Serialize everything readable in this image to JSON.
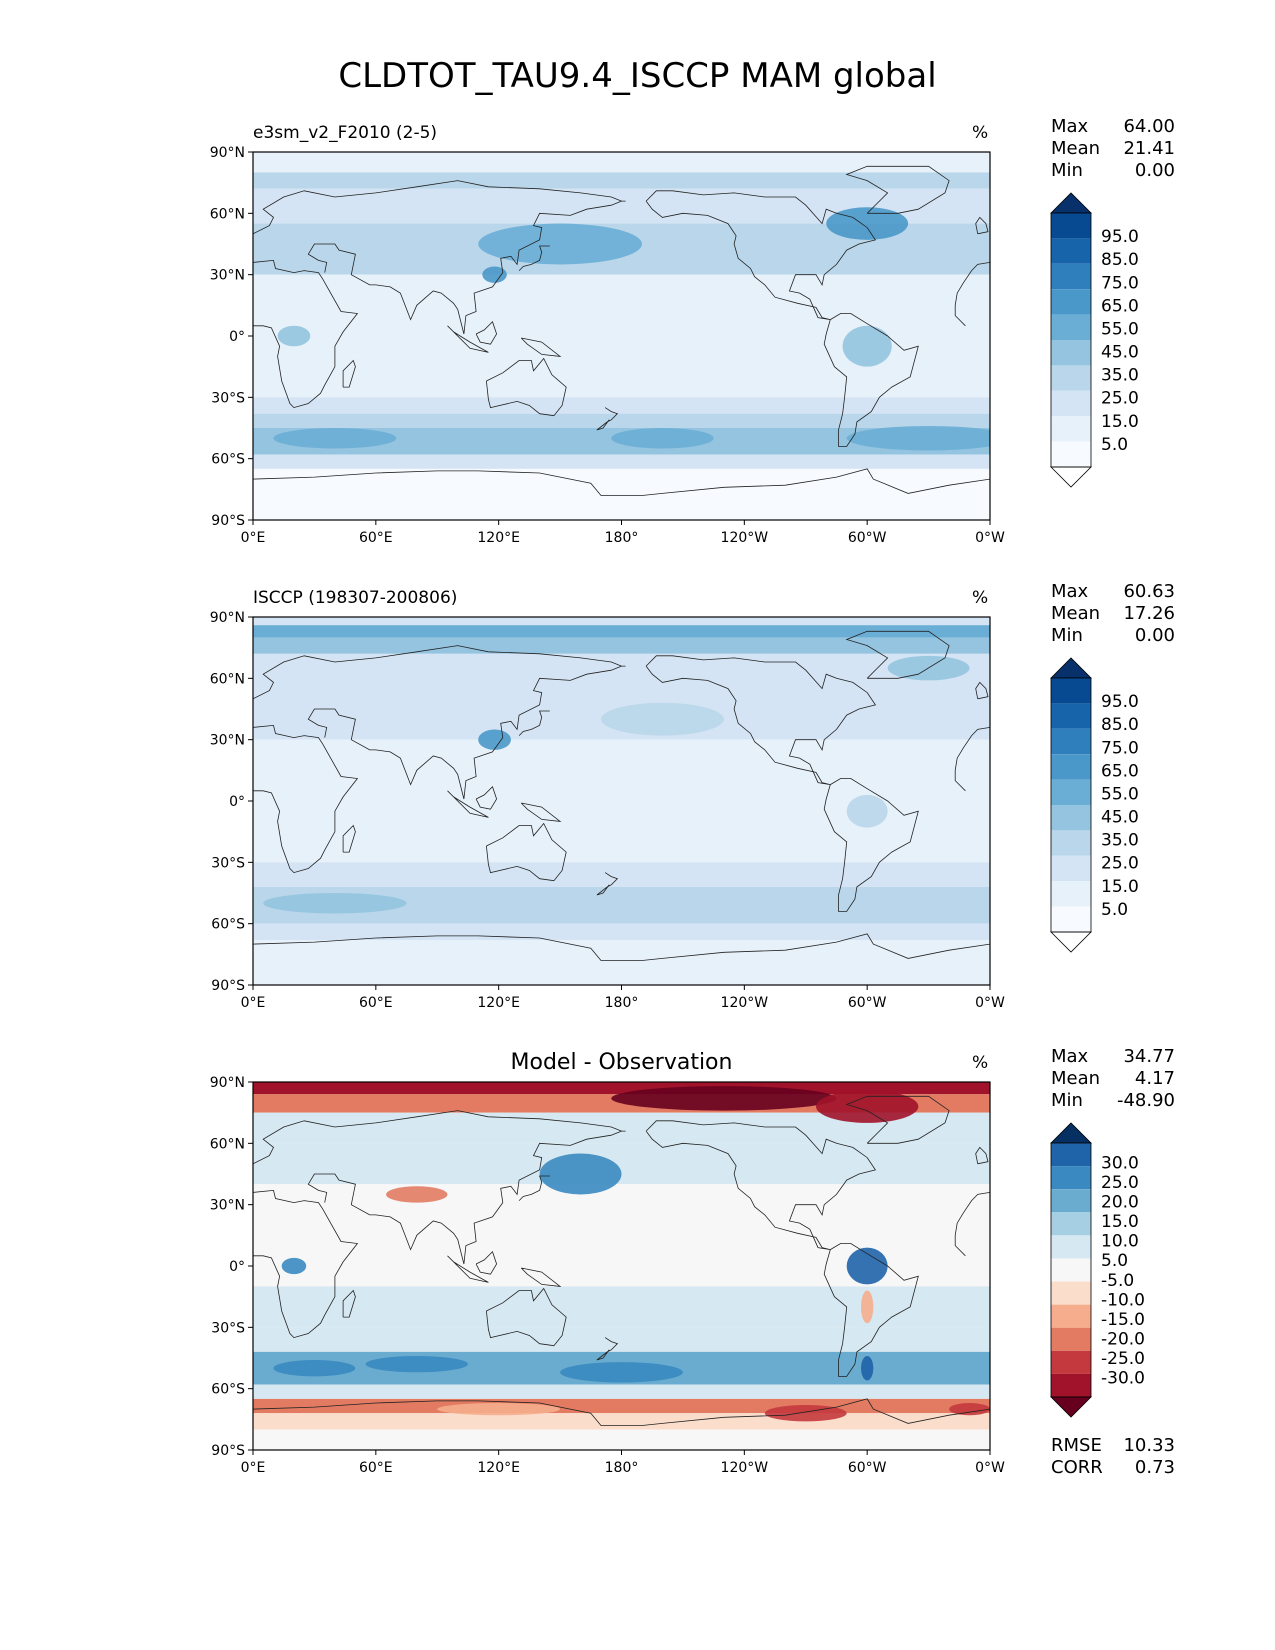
{
  "title": "CLDTOT_TAU9.4_ISCCP MAM global",
  "lat_ticks": [
    "90°N",
    "60°N",
    "30°N",
    "0°",
    "30°S",
    "60°S",
    "90°S"
  ],
  "lon_ticks": [
    "0°E",
    "60°E",
    "120°E",
    "180°",
    "120°W",
    "60°W",
    "0°W"
  ],
  "panels": [
    {
      "id": "test",
      "title": "e3sm_v2_F2010 (2-5)",
      "units": "%",
      "stats": {
        "max_label": "Max",
        "max": "64.00",
        "mean_label": "Mean",
        "mean": "21.41",
        "min_label": "Min",
        "min": "0.00"
      },
      "colorbar": {
        "ticks": [
          "95.0",
          "85.0",
          "75.0",
          "65.0",
          "55.0",
          "45.0",
          "35.0",
          "25.0",
          "15.0",
          "5.0"
        ],
        "colors": [
          "#08306b",
          "#084a91",
          "#1764ab",
          "#2f7fbc",
          "#4a98c9",
          "#6aaed6",
          "#94c4df",
          "#b9d6ea",
          "#d4e4f4",
          "#e7f1fa",
          "#f7fbff",
          "#ffffff"
        ]
      }
    },
    {
      "id": "ref",
      "title": "ISCCP (198307-200806)",
      "units": "%",
      "stats": {
        "max_label": "Max",
        "max": "60.63",
        "mean_label": "Mean",
        "mean": "17.26",
        "min_label": "Min",
        "min": "0.00"
      },
      "colorbar": {
        "ticks": [
          "95.0",
          "85.0",
          "75.0",
          "65.0",
          "55.0",
          "45.0",
          "35.0",
          "25.0",
          "15.0",
          "5.0"
        ],
        "colors": [
          "#08306b",
          "#084a91",
          "#1764ab",
          "#2f7fbc",
          "#4a98c9",
          "#6aaed6",
          "#94c4df",
          "#b9d6ea",
          "#d4e4f4",
          "#e7f1fa",
          "#f7fbff",
          "#ffffff"
        ]
      }
    },
    {
      "id": "diff",
      "title": "Model - Observation",
      "units": "%",
      "stats": {
        "max_label": "Max",
        "max": "34.77",
        "mean_label": "Mean",
        "mean": "4.17",
        "min_label": "Min",
        "min": "-48.90"
      },
      "colorbar": {
        "ticks": [
          "30.0",
          "25.0",
          "20.0",
          "15.0",
          "10.0",
          "5.0",
          "-5.0",
          "-10.0",
          "-15.0",
          "-20.0",
          "-25.0",
          "-30.0"
        ],
        "colors": [
          "#053061",
          "#1f63a8",
          "#3a89c0",
          "#6aacd0",
          "#a6cfe3",
          "#d6e8f1",
          "#f7f7f7",
          "#fbddcc",
          "#f5ad8d",
          "#e27b62",
          "#c4393d",
          "#a1132a",
          "#67001f"
        ]
      },
      "footer": {
        "rmse_label": "RMSE",
        "rmse": "10.33",
        "corr_label": "CORR",
        "corr": "0.73"
      }
    }
  ]
}
